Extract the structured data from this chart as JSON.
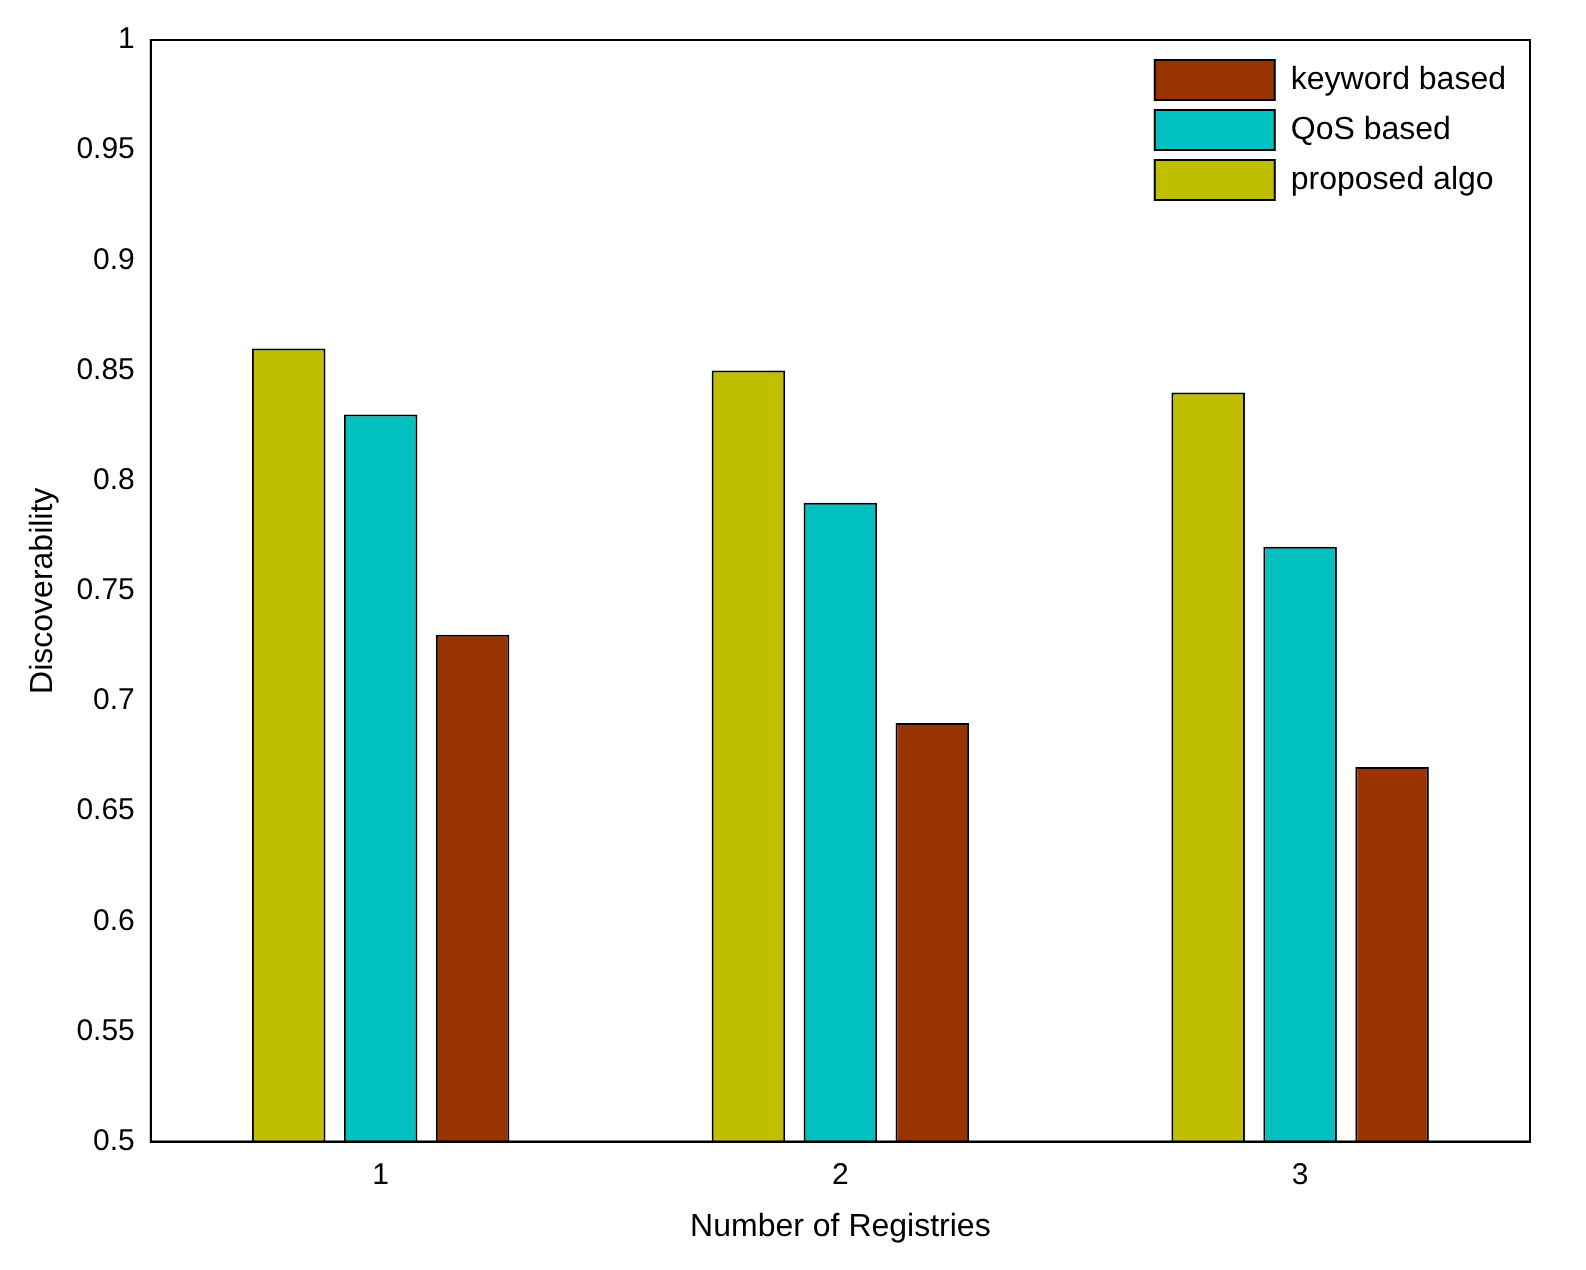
{
  "chart_data": {
    "type": "bar",
    "xlabel": "Number of Registries",
    "ylabel": "Discoverability",
    "categories": [
      "1",
      "2",
      "3"
    ],
    "series": [
      {
        "name": "proposed algo",
        "color": "#bfbf00",
        "values": [
          0.86,
          0.85,
          0.84
        ]
      },
      {
        "name": "QoS based",
        "color": "#00c0c0",
        "values": [
          0.83,
          0.79,
          0.77
        ]
      },
      {
        "name": "keyword based",
        "color": "#993300",
        "values": [
          0.73,
          0.69,
          0.67
        ]
      }
    ],
    "ylim": [
      0.5,
      1
    ],
    "yticks": [
      0.5,
      0.55,
      0.6,
      0.65,
      0.7,
      0.75,
      0.8,
      0.85,
      0.9,
      0.95,
      1
    ],
    "grid": false,
    "legend": "top right"
  }
}
